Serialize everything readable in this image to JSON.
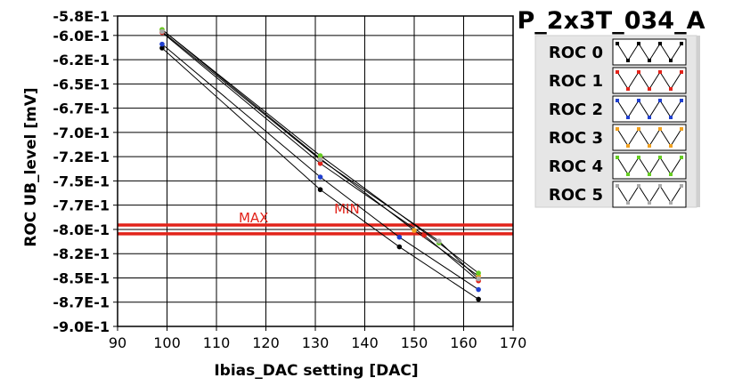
{
  "chart_data": {
    "type": "line",
    "title": "P_2x3T_034_A",
    "xlabel": "Ibias_DAC setting [DAC]",
    "ylabel": "ROC UB_level [mV]",
    "xlim": [
      90,
      170
    ],
    "ylim": [
      -0.9,
      -0.58
    ],
    "x_ticks": [
      90,
      100,
      110,
      120,
      130,
      140,
      150,
      160,
      170
    ],
    "y_ticks": [
      -0.9,
      -0.875,
      -0.85,
      -0.825,
      -0.8,
      -0.775,
      -0.75,
      -0.725,
      -0.7,
      -0.675,
      -0.65,
      -0.625,
      -0.6,
      -0.58
    ],
    "y_tick_labels": [
      "-9.0E-1",
      "-8.7E-1",
      "-8.5E-1",
      "-8.2E-1",
      "-8.0E-1",
      "-7.7E-1",
      "-7.5E-1",
      "-7.2E-1",
      "-7.0E-1",
      "-6.7E-1",
      "-6.5E-1",
      "-6.2E-1",
      "-6.0E-1",
      "-5.8E-1"
    ],
    "grid": true,
    "legend_position": "top-right",
    "series": [
      {
        "name": "ROC 0",
        "color": "#000000",
        "x": [
          99,
          131,
          147,
          163
        ],
        "y": [
          -0.613,
          -0.759,
          -0.818,
          -0.872
        ]
      },
      {
        "name": "ROC 1",
        "color": "#e2231a",
        "x": [
          99,
          131,
          152,
          163
        ],
        "y": [
          -0.597,
          -0.732,
          -0.806,
          -0.853
        ]
      },
      {
        "name": "ROC 2",
        "color": "#1f3fcf",
        "x": [
          99,
          131,
          147,
          163
        ],
        "y": [
          -0.609,
          -0.746,
          -0.808,
          -0.862
        ]
      },
      {
        "name": "ROC 3",
        "color": "#f0a020",
        "x": [
          99,
          131,
          150,
          163
        ],
        "y": [
          -0.594,
          -0.727,
          -0.801,
          -0.848
        ]
      },
      {
        "name": "ROC 4",
        "color": "#66cc22",
        "x": [
          99,
          131,
          155,
          163
        ],
        "y": [
          -0.594,
          -0.724,
          -0.814,
          -0.845
        ]
      },
      {
        "name": "ROC 5",
        "color": "#aaaaaa",
        "x": [
          99,
          131,
          155,
          163
        ],
        "y": [
          -0.596,
          -0.728,
          -0.812,
          -0.851
        ]
      }
    ],
    "lines": [
      {
        "label": "MAX",
        "y": -0.7955,
        "color": "#e2231a"
      },
      {
        "label": "MIN",
        "y": -0.8045,
        "color": "#e2231a"
      }
    ]
  }
}
